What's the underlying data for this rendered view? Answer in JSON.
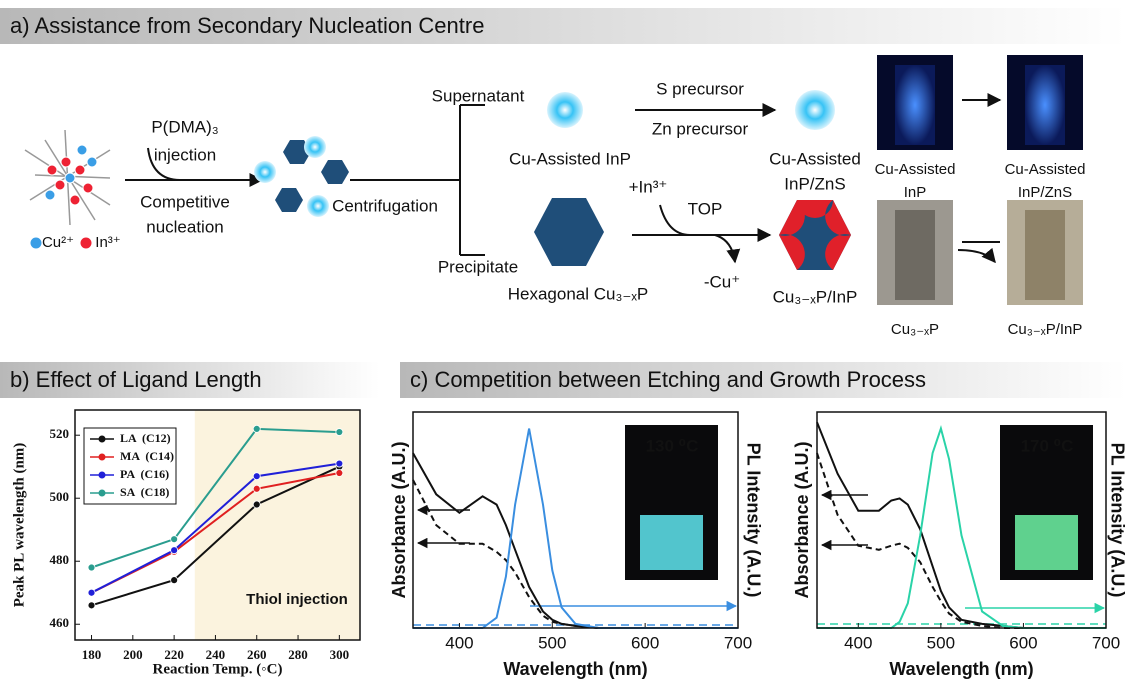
{
  "panel_a": {
    "title": "a) Assistance from Secondary Nucleation Centre",
    "labels": [
      "P(DMA)₃",
      "injection",
      "Competitive",
      "nucleation",
      "Cu²⁺",
      "In³⁺",
      "Centrifugation",
      "Supernatant",
      "Precipitate",
      "Cu-Assisted InP",
      "Hexagonal Cu₃₋ₓP",
      "S precursor",
      "Zn precursor",
      "Cu-Assisted",
      "InP/ZnS",
      "+In³⁺",
      "TOP",
      "-Cu⁺",
      "Cu₃₋ₓP/InP"
    ],
    "photo_labels": [
      "Cu-Assisted",
      "InP",
      "Cu-Assisted",
      "InP/ZnS",
      "Cu₃₋ₓP",
      "Cu₃₋ₓP/InP"
    ]
  },
  "panel_b": {
    "title": "b) Effect of Ligand Length"
  },
  "panel_c": {
    "title": "c) Competition between Etching and Growth Process"
  },
  "chart_data": [
    {
      "type": "line",
      "markers": true,
      "xlabel": "Reaction Temp. (◦C)",
      "ylabel": "Peak PL wavelength (nm)",
      "x": [
        180,
        220,
        260,
        300
      ],
      "xlim": [
        172,
        310
      ],
      "xticks": [
        180,
        200,
        220,
        240,
        260,
        280,
        300
      ],
      "ylim": [
        455,
        528
      ],
      "yticks": [
        460,
        480,
        500,
        520
      ],
      "shaded_region": [
        230,
        310
      ],
      "shade_color": "#fbf3de",
      "annotation": "Thiol injection",
      "legend": "upper left",
      "series": [
        {
          "name": "LA  (C12)",
          "color": "#111111",
          "values": [
            466,
            474,
            498,
            510
          ]
        },
        {
          "name": "MA  (C14)",
          "color": "#e02020",
          "values": [
            470,
            483,
            503,
            508
          ]
        },
        {
          "name": "PA  (C16)",
          "color": "#2020d8",
          "values": [
            470,
            483.5,
            507,
            511
          ]
        },
        {
          "name": "SA  (C18)",
          "color": "#2a9d8f",
          "values": [
            478,
            487,
            522,
            521
          ]
        }
      ]
    },
    {
      "type": "line",
      "xlabel": "Wavelength (nm)",
      "ylabel": "Absorbance (A.U.)",
      "y2label": "PL Intensity (A.U.)",
      "y2label_color": "#3a8ee0",
      "annotation": "130 ⁰C",
      "x": [
        350,
        375,
        400,
        425,
        440,
        450,
        460,
        475,
        490,
        500,
        510,
        525,
        550,
        575,
        600,
        650,
        700
      ],
      "xlim": [
        350,
        700
      ],
      "xticks": [
        400,
        500,
        600,
        700
      ],
      "ylim": [
        0,
        1.05
      ],
      "y2lim": [
        0,
        1.05
      ],
      "series": [
        {
          "color": "#111111",
          "line_style": "solid",
          "values": [
            0.85,
            0.65,
            0.56,
            0.64,
            0.6,
            0.5,
            0.38,
            0.2,
            0.08,
            0.04,
            0.02,
            0.01,
            0,
            0,
            0,
            0,
            0
          ]
        },
        {
          "color": "#111111",
          "line_style": "dashed",
          "values": [
            0.72,
            0.5,
            0.41,
            0.41,
            0.37,
            0.33,
            0.27,
            0.15,
            0.06,
            0.03,
            0.02,
            0.01,
            0,
            0,
            0,
            0,
            0
          ]
        },
        {
          "color": "#3a8ee0",
          "line_style": "solid",
          "axis": "y2",
          "values": [
            0,
            0,
            0,
            0,
            0.05,
            0.25,
            0.6,
            0.97,
            0.6,
            0.28,
            0.1,
            0.02,
            0,
            0,
            0,
            0,
            0
          ]
        }
      ]
    },
    {
      "type": "line",
      "xlabel": "Wavelength (nm)",
      "ylabel": "Absorbance (A.U.)",
      "y2label": "PL Intensity (A.U.)",
      "y2label_color": "#2ad3a8",
      "annotation": "170 ⁰C",
      "x": [
        350,
        375,
        400,
        425,
        440,
        450,
        460,
        475,
        490,
        500,
        510,
        525,
        550,
        575,
        600,
        650,
        700
      ],
      "xlim": [
        350,
        700
      ],
      "xticks": [
        400,
        500,
        600,
        700
      ],
      "ylim": [
        0,
        1.05
      ],
      "y2lim": [
        0,
        1.05
      ],
      "series": [
        {
          "color": "#111111",
          "line_style": "solid",
          "values": [
            1.0,
            0.75,
            0.57,
            0.57,
            0.62,
            0.63,
            0.6,
            0.48,
            0.3,
            0.18,
            0.1,
            0.04,
            0.02,
            0.01,
            0,
            0,
            0
          ]
        },
        {
          "color": "#111111",
          "line_style": "dashed",
          "values": [
            0.85,
            0.55,
            0.4,
            0.38,
            0.4,
            0.41,
            0.39,
            0.32,
            0.2,
            0.13,
            0.07,
            0.03,
            0.01,
            0,
            0,
            0,
            0
          ]
        },
        {
          "color": "#2ad3a8",
          "line_style": "solid",
          "axis": "y2",
          "values": [
            0,
            0,
            0,
            0,
            0,
            0.03,
            0.12,
            0.45,
            0.85,
            0.97,
            0.82,
            0.45,
            0.08,
            0.01,
            0,
            0,
            0
          ]
        }
      ]
    }
  ]
}
